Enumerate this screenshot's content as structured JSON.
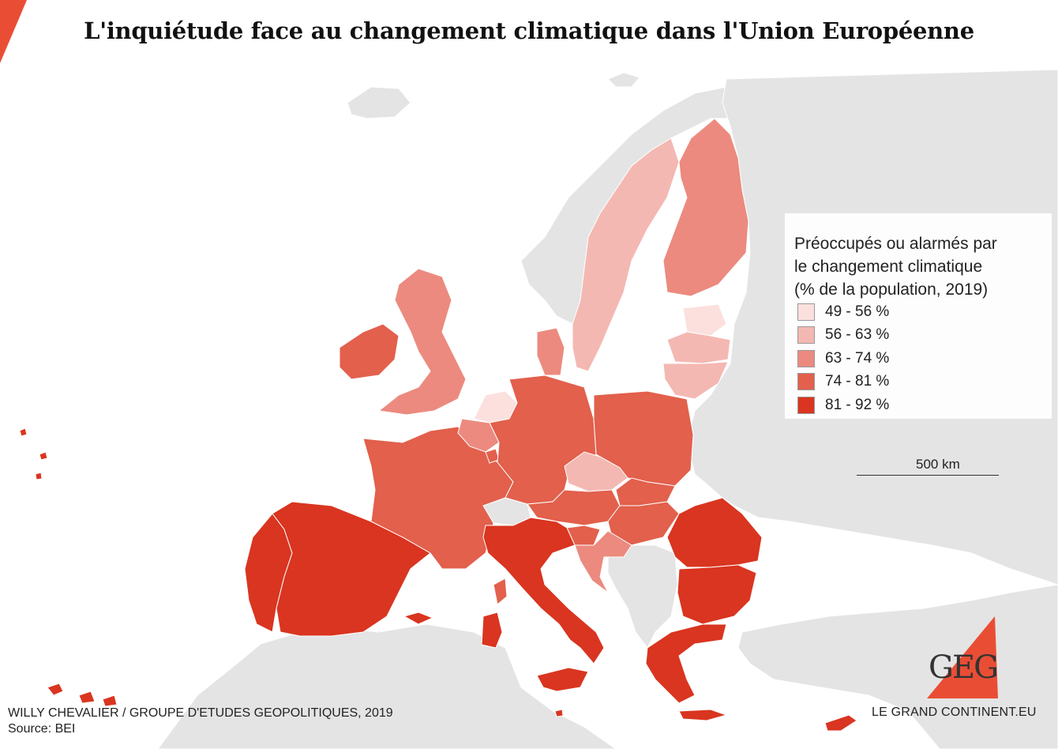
{
  "title": "L'inquiétude face au changement climatique dans l'Union Européenne",
  "legend": {
    "title_lines": [
      "Préoccupés ou alarmés par",
      "le changement climatique",
      "(% de la population, 2019)"
    ],
    "classes": [
      {
        "label": "49 - 56 %",
        "color": "#fbe0de"
      },
      {
        "label": "56 - 63 %",
        "color": "#f4b8b2"
      },
      {
        "label": "63 - 74 %",
        "color": "#ec8a7f"
      },
      {
        "label": "74 - 81 %",
        "color": "#e2604c"
      },
      {
        "label": "81 - 92 %",
        "color": "#d93520"
      }
    ]
  },
  "scale_label": "500 km",
  "credits": {
    "author": "WILLY CHEVALIER / GROUPE D'ETUDES GEOPOLITIQUES, 2019",
    "source": "Source: BEI"
  },
  "brand": {
    "logo_text": "GEG",
    "site": "LE GRAND CONTINENT.EU",
    "accent_color": "#e94e35"
  },
  "colors": {
    "sea": "#ffffff",
    "non_eu_land": "#e4e4e4"
  },
  "countries": {
    "spain": {
      "class": 4
    },
    "portugal": {
      "class": 4
    },
    "italy": {
      "class": 4
    },
    "greece": {
      "class": 4
    },
    "romania": {
      "class": 4
    },
    "bulgaria": {
      "class": 4
    },
    "cyprus": {
      "class": 4
    },
    "malta": {
      "class": 4
    },
    "france": {
      "class": 3
    },
    "germany": {
      "class": 3
    },
    "poland": {
      "class": 3
    },
    "austria": {
      "class": 3
    },
    "hungary": {
      "class": 3
    },
    "slovakia": {
      "class": 3
    },
    "slovenia": {
      "class": 3
    },
    "ireland": {
      "class": 3
    },
    "luxembourg": {
      "class": 3
    },
    "uk": {
      "class": 2
    },
    "finland": {
      "class": 2
    },
    "belgium": {
      "class": 2
    },
    "denmark": {
      "class": 2
    },
    "croatia": {
      "class": 2
    },
    "sweden": {
      "class": 1
    },
    "czechia": {
      "class": 1
    },
    "latvia": {
      "class": 1
    },
    "lithuania": {
      "class": 1
    },
    "netherlands": {
      "class": 0
    },
    "estonia": {
      "class": 0
    }
  }
}
